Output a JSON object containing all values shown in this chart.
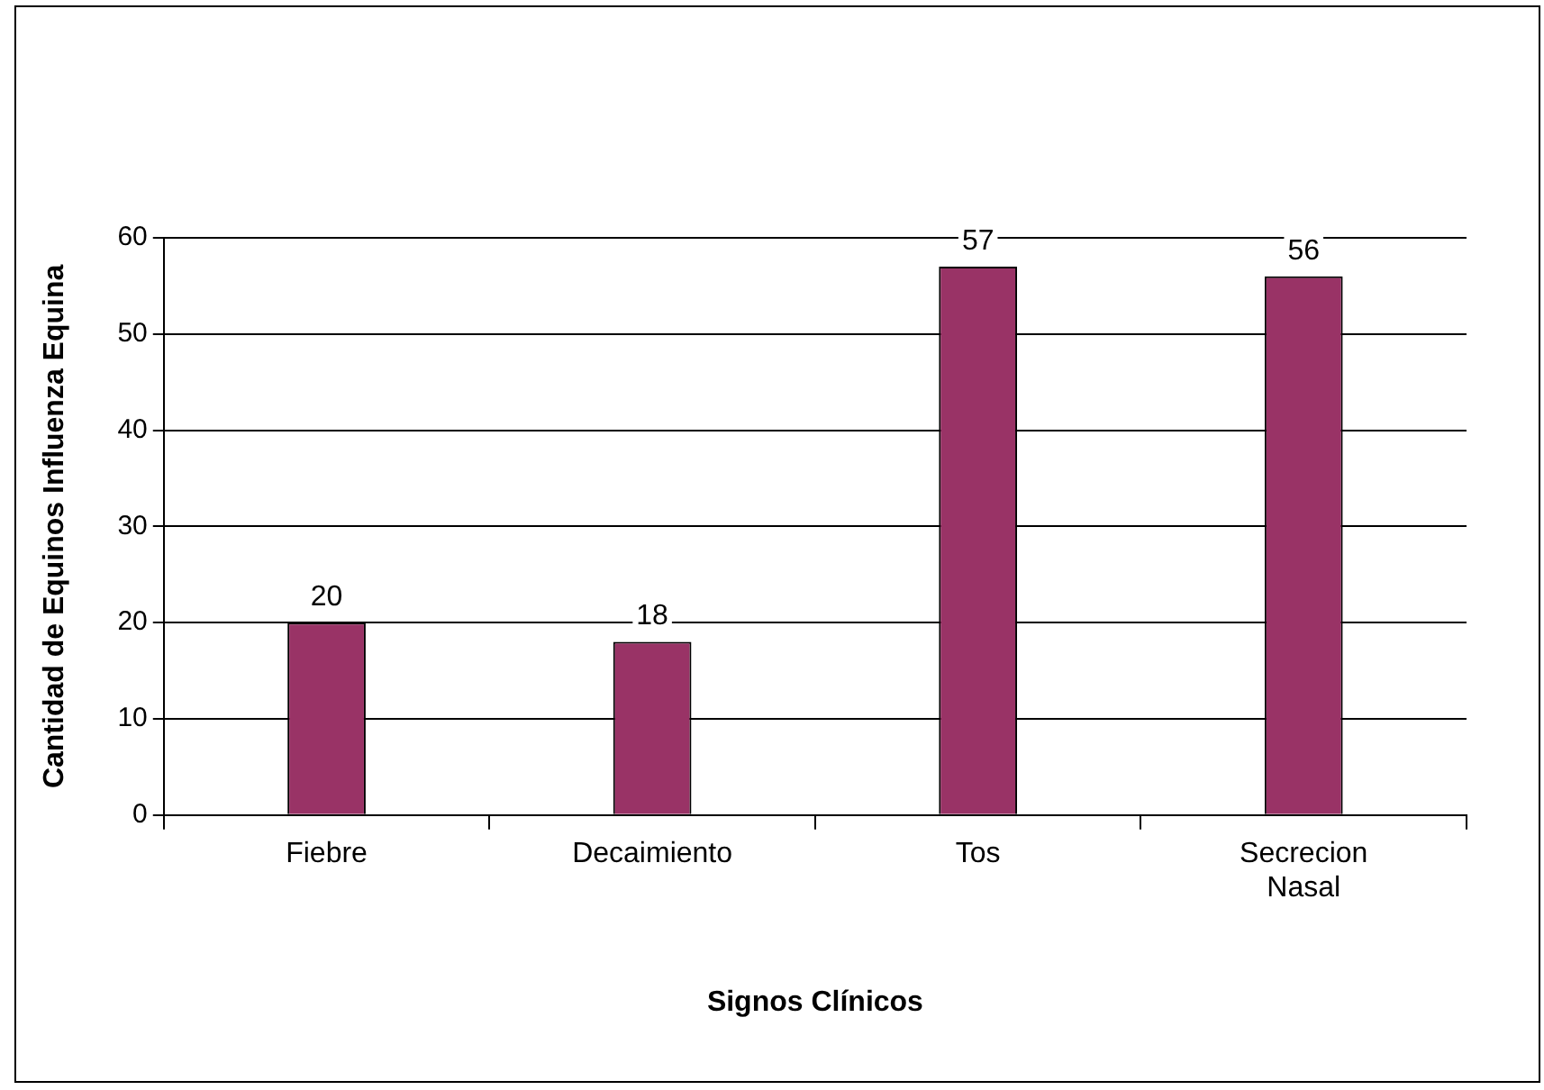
{
  "chart_data": {
    "type": "bar",
    "xlabel": "Signos Clínicos",
    "ylabel": "Cantidad de Equinos Influenza Equina",
    "categories": [
      "Fiebre",
      "Decaimiento",
      "Tos",
      "Secrecion Nasal"
    ],
    "values": [
      20,
      18,
      57,
      56
    ],
    "color": "#993366",
    "ylim": [
      0,
      60
    ],
    "yticks": [
      0,
      10,
      20,
      30,
      40,
      50,
      60
    ],
    "grid": "y",
    "data_labels": true,
    "legend": false
  }
}
